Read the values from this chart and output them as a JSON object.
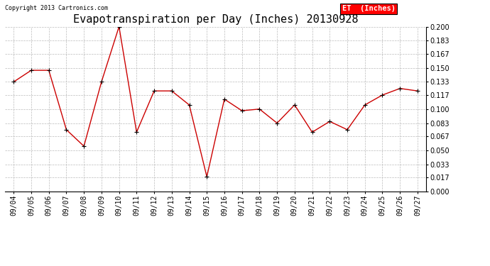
{
  "title": "Evapotranspiration per Day (Inches) 20130928",
  "copyright_text": "Copyright 2013 Cartronics.com",
  "legend_label": "ET  (Inches)",
  "legend_bg": "#ff0000",
  "legend_text_color": "#ffffff",
  "dates": [
    "09/04",
    "09/05",
    "09/06",
    "09/07",
    "09/08",
    "09/09",
    "09/10",
    "09/11",
    "09/12",
    "09/13",
    "09/14",
    "09/15",
    "09/16",
    "09/17",
    "09/18",
    "09/19",
    "09/20",
    "09/21",
    "09/22",
    "09/23",
    "09/24",
    "09/25",
    "09/26",
    "09/27"
  ],
  "values": [
    0.133,
    0.147,
    0.147,
    0.075,
    0.055,
    0.133,
    0.2,
    0.072,
    0.122,
    0.122,
    0.105,
    0.018,
    0.112,
    0.098,
    0.1,
    0.083,
    0.105,
    0.072,
    0.085,
    0.075,
    0.105,
    0.117,
    0.125,
    0.122
  ],
  "ylim": [
    0.0,
    0.2
  ],
  "yticks": [
    0.0,
    0.017,
    0.033,
    0.05,
    0.067,
    0.083,
    0.1,
    0.117,
    0.133,
    0.15,
    0.167,
    0.183,
    0.2
  ],
  "line_color": "#cc0000",
  "marker_color": "#000000",
  "grid_color": "#bbbbbb",
  "bg_color": "#ffffff",
  "title_fontsize": 11,
  "copyright_fontsize": 6,
  "tick_fontsize": 7,
  "legend_fontsize": 7.5
}
